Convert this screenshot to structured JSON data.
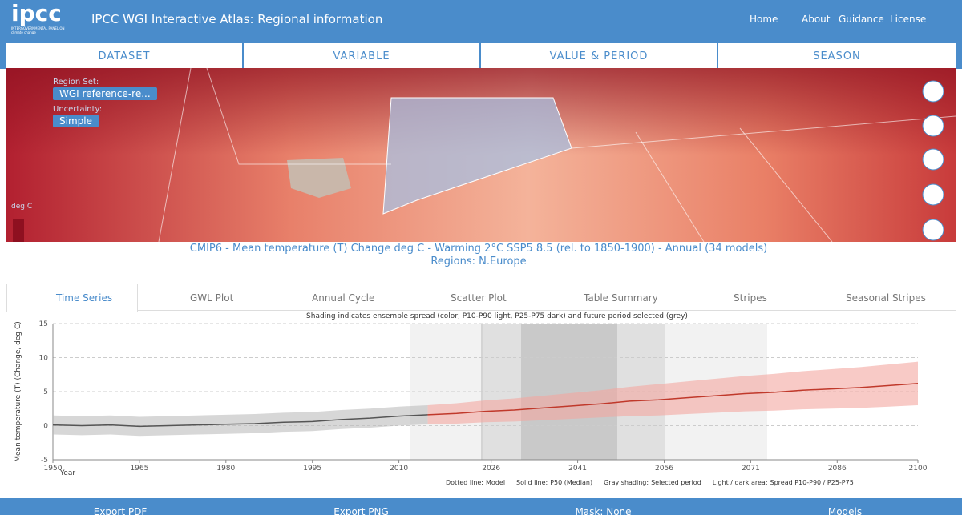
{
  "header": {
    "logo": "ipcc",
    "logo_sub": "INTERGOVERNMENTAL PANEL ON climate change",
    "title": "IPCC WGI Interactive Atlas: Regional information",
    "nav": [
      "Home",
      "About",
      "Guidance",
      "License"
    ]
  },
  "toolbar": [
    "DATASET",
    "VARIABLE",
    "VALUE & PERIOD",
    "SEASON"
  ],
  "map": {
    "region_set_label": "Region Set:",
    "region_set": "WGI reference-re...",
    "uncertainty_label": "Uncertainty:",
    "uncertainty": "Simple",
    "unit": "deg C"
  },
  "caption": {
    "line1": "CMIP6 - Mean temperature (T) Change deg C - Warming 2°C SSP5 8.5 (rel. to 1850-1900) - Annual (34 models)",
    "line2": "Regions: N.Europe"
  },
  "tabs": [
    "Time Series",
    "GWL Plot",
    "Annual Cycle",
    "Scatter Plot",
    "Table Summary",
    "Stripes",
    "Seasonal Stripes"
  ],
  "chart_data": {
    "type": "line",
    "title": "Shading indicates ensemble spread (color, P10-P90 light, P25-P75 dark) and future period selected (grey)",
    "y_label": "Mean temperature (T) (Change, deg C)",
    "x_label": "Year",
    "x": [
      1950,
      1955,
      1960,
      1965,
      1970,
      1975,
      1980,
      1985,
      1990,
      1995,
      2000,
      2005,
      2010,
      2015,
      2020,
      2025,
      2030,
      2035,
      2040,
      2045,
      2050,
      2055,
      2060,
      2065,
      2070,
      2075,
      2080,
      2085,
      2090,
      2095,
      2100
    ],
    "series": [
      {
        "color": "#555555",
        "values": [
          0.1,
          0.0,
          0.1,
          -0.1,
          0.0,
          0.1,
          0.2,
          0.3,
          0.5,
          0.6,
          0.9,
          1.1,
          1.4,
          1.6,
          null,
          null,
          null,
          null,
          null,
          null,
          null,
          null,
          null,
          null,
          null,
          null,
          null,
          null,
          null,
          null,
          null
        ]
      },
      {
        "color": "#c0392b",
        "values": [
          null,
          null,
          null,
          null,
          null,
          null,
          null,
          null,
          null,
          null,
          null,
          null,
          null,
          1.6,
          1.8,
          2.1,
          2.3,
          2.6,
          2.9,
          3.2,
          3.6,
          3.8,
          4.1,
          4.4,
          4.7,
          4.9,
          5.2,
          5.4,
          5.6,
          5.9,
          6.2
        ]
      }
    ],
    "bands": [
      {
        "color": "#bdbdbd",
        "lower": [
          -1.3,
          -1.4,
          -1.3,
          -1.5,
          -1.4,
          -1.3,
          -1.2,
          -1.1,
          -0.9,
          -0.8,
          -0.5,
          -0.3,
          0,
          0.2,
          null,
          null,
          null,
          null,
          null,
          null,
          null,
          null,
          null,
          null,
          null,
          null,
          null,
          null,
          null,
          null,
          null
        ],
        "upper": [
          1.5,
          1.4,
          1.5,
          1.3,
          1.4,
          1.5,
          1.6,
          1.7,
          1.9,
          2.0,
          2.3,
          2.5,
          2.8,
          3.0,
          null,
          null,
          null,
          null,
          null,
          null,
          null,
          null,
          null,
          null,
          null,
          null,
          null,
          null,
          null,
          null,
          null
        ]
      },
      {
        "color": "#f4a6a0",
        "lower": [
          null,
          null,
          null,
          null,
          null,
          null,
          null,
          null,
          null,
          null,
          null,
          null,
          null,
          0.2,
          0.3,
          0.5,
          0.6,
          0.8,
          1.0,
          1.2,
          1.4,
          1.5,
          1.7,
          1.9,
          2.1,
          2.2,
          2.4,
          2.5,
          2.6,
          2.8,
          3.0
        ],
        "upper": [
          null,
          null,
          null,
          null,
          null,
          null,
          null,
          null,
          null,
          null,
          null,
          null,
          null,
          3.0,
          3.3,
          3.7,
          4.0,
          4.4,
          4.8,
          5.2,
          5.7,
          6.1,
          6.5,
          6.9,
          7.3,
          7.6,
          8.0,
          8.3,
          8.6,
          9.0,
          9.4
        ]
      }
    ],
    "xlim": [
      1950,
      2100
    ],
    "xticks": [
      1950,
      1965,
      1980,
      1995,
      2010,
      2026,
      2041,
      2056,
      2071,
      2086,
      2100
    ],
    "ylim": [
      -5,
      15
    ],
    "yticks": [
      -5,
      0,
      5,
      10,
      15
    ],
    "grid": true
  },
  "notes": [
    [
      "Dotted line:",
      "Model"
    ],
    [
      "Solid line:",
      "P50 (Median)"
    ],
    [
      "Gray shading:",
      "Selected period"
    ],
    [
      "Light / dark area:",
      "Spread P10-P90 / P25-P75"
    ]
  ],
  "buttons": [
    "Export PDF",
    "Export PNG",
    "Mask: None",
    "Models"
  ]
}
